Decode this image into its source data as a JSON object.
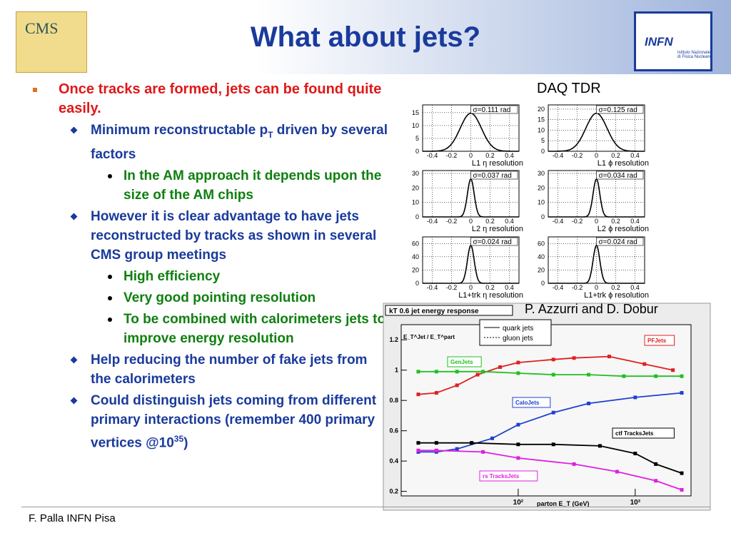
{
  "header": {
    "title": "What about jets?",
    "left_logo": "CMS",
    "right_logo": "INFN",
    "right_logo_sub": "Istituto Nazionale di Fisica Nucleare"
  },
  "bullets": [
    {
      "level": 1,
      "parts": [
        {
          "text": "Once tracks are formed, jets can be found quite easily."
        }
      ]
    },
    {
      "level": 2,
      "parts": [
        {
          "text": "Minimum reconstructable p"
        },
        {
          "text": "T",
          "shift": "sub"
        },
        {
          "text": " driven by several factors"
        }
      ]
    },
    {
      "level": 3,
      "parts": [
        {
          "text": "In the AM approach it depends upon the size of the AM chips"
        }
      ]
    },
    {
      "level": 2,
      "parts": [
        {
          "text": "However it is clear advantage to have jets reconstructed by tracks as shown in several CMS group meetings"
        }
      ]
    },
    {
      "level": 3,
      "parts": [
        {
          "text": "High efficiency"
        }
      ]
    },
    {
      "level": 3,
      "parts": [
        {
          "text": "Very good pointing resolution"
        }
      ]
    },
    {
      "level": 3,
      "parts": [
        {
          "text": "To be combined with calorimeters jets to improve energy resolution"
        }
      ]
    },
    {
      "level": 2,
      "parts": [
        {
          "text": "Help reducing the number of fake jets from the calorimeters"
        }
      ]
    },
    {
      "level": 2,
      "parts": [
        {
          "text": "Could distinguish jets coming from different primary interactions (remember 400 primary vertices @10"
        },
        {
          "text": "35",
          "shift": "sup"
        },
        {
          "text": ")"
        }
      ]
    }
  ],
  "captions": {
    "daq": "DAQ TDR",
    "authors": "P. Azzurri and D. Dobur"
  },
  "footer": "F. Palla INFN Pisa",
  "resolution_panels": {
    "xlim": [
      -0.5,
      0.5
    ],
    "xticks": [
      -0.4,
      -0.2,
      0,
      0.2,
      0.4
    ],
    "panels": [
      {
        "label": "σ=0.111 rad",
        "xlabel": "L1 η resolution",
        "ylim": [
          0,
          18
        ],
        "yticks": [
          0,
          5,
          10,
          15
        ]
      },
      {
        "label": "σ=0.125 rad",
        "xlabel": "L1 ϕ resolution",
        "ylim": [
          0,
          22
        ],
        "yticks": [
          0,
          5,
          10,
          15,
          20
        ]
      },
      {
        "label": "σ=0.037 rad",
        "xlabel": "L2 η resolution",
        "ylim": [
          0,
          32
        ],
        "yticks": [
          0,
          10,
          20,
          30
        ]
      },
      {
        "label": "σ=0.034 rad",
        "xlabel": "L2 ϕ resolution",
        "ylim": [
          0,
          32
        ],
        "yticks": [
          0,
          10,
          20,
          30
        ]
      },
      {
        "label": "σ=0.024 rad",
        "xlabel": "L1+trk η resolution",
        "ylim": [
          0,
          70
        ],
        "yticks": [
          0,
          20,
          40,
          60
        ]
      },
      {
        "label": "σ=0.024 rad",
        "xlabel": "L1+trk ϕ resolution",
        "ylim": [
          0,
          70
        ],
        "yticks": [
          0,
          20,
          40,
          60
        ]
      }
    ]
  },
  "chart_data": {
    "type": "line",
    "title": "kT 0.6 jet energy response",
    "y_label": "E_T^Jet / E_T^part",
    "x_label": "parton E_T (GeV)",
    "legend": [
      "quark jets",
      "gluon jets"
    ],
    "log_x": true,
    "xlim": [
      10,
      3000
    ],
    "ylim": [
      0.17,
      1.3
    ],
    "xticks": [
      {
        "value": 100,
        "label": "10²"
      },
      {
        "value": 1000,
        "label": "10³"
      }
    ],
    "yticks": [
      0.2,
      0.4,
      0.6,
      0.8,
      1,
      1.2
    ],
    "series": [
      {
        "name": "PFJets",
        "color": "#e02020",
        "x": [
          14,
          20,
          30,
          45,
          70,
          100,
          200,
          300,
          600,
          1200,
          2100
        ],
        "values": [
          0.84,
          0.85,
          0.9,
          0.97,
          1.02,
          1.05,
          1.07,
          1.08,
          1.09,
          1.04,
          1.0
        ]
      },
      {
        "name": "GenJets",
        "color": "#20c020",
        "x": [
          14,
          20,
          30,
          50,
          100,
          200,
          400,
          800,
          1500,
          2500
        ],
        "values": [
          0.99,
          0.99,
          0.99,
          0.99,
          0.98,
          0.97,
          0.97,
          0.96,
          0.96,
          0.96
        ]
      },
      {
        "name": "CaloJets",
        "color": "#2040d0",
        "x": [
          14,
          20,
          30,
          60,
          100,
          200,
          400,
          1000,
          2500
        ],
        "values": [
          0.46,
          0.46,
          0.48,
          0.55,
          0.64,
          0.72,
          0.78,
          0.82,
          0.85
        ]
      },
      {
        "name": "ctf TracksJets",
        "color": "#000000",
        "x": [
          14,
          20,
          40,
          100,
          200,
          500,
          1000,
          1500,
          2500
        ],
        "values": [
          0.52,
          0.52,
          0.52,
          0.51,
          0.51,
          0.5,
          0.45,
          0.38,
          0.32
        ]
      },
      {
        "name": "rs TracksJets",
        "color": "#e020e0",
        "x": [
          14,
          20,
          50,
          100,
          300,
          700,
          1500,
          2500
        ],
        "values": [
          0.47,
          0.47,
          0.46,
          0.42,
          0.38,
          0.33,
          0.27,
          0.21
        ]
      }
    ]
  }
}
